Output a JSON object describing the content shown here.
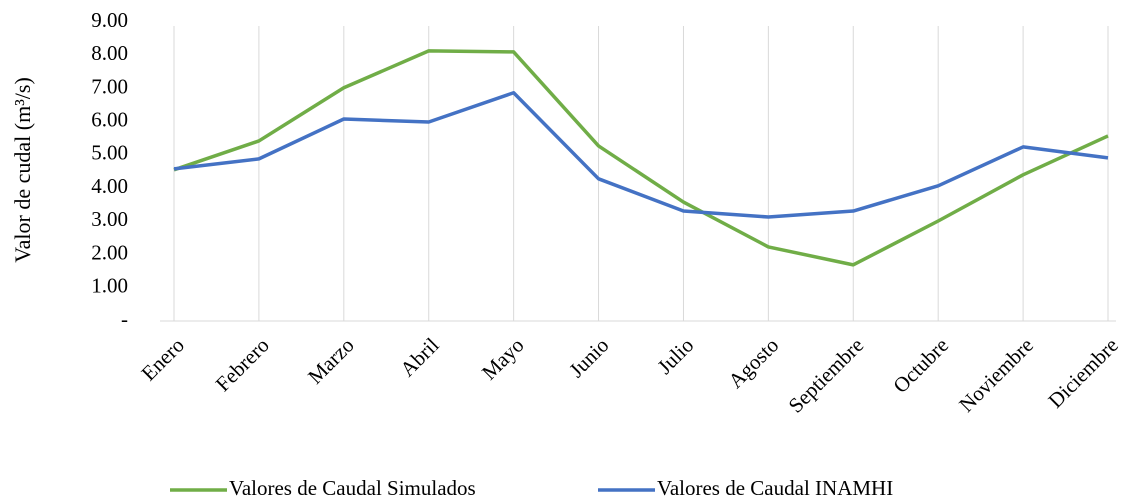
{
  "chart_data": {
    "type": "line",
    "y_label": "Valor de cudal (m³/s)",
    "categories": [
      "Enero",
      "Febrero",
      "Marzo",
      "Abril",
      "Mayo",
      "Junio",
      "Julio",
      "Agosto",
      "Septiembre",
      "Octubre",
      "Noviembre",
      "Diciembre"
    ],
    "series": [
      {
        "name": "Valores de Caudal Simulados",
        "color": "#70ad47",
        "values": [
          4.55,
          5.42,
          7.02,
          8.13,
          8.1,
          5.27,
          3.58,
          2.23,
          1.69,
          3.01,
          4.4,
          5.57
        ]
      },
      {
        "name": "Valores de Caudal INAMHI",
        "color": "#4472c4",
        "values": [
          4.58,
          4.88,
          6.08,
          5.99,
          6.87,
          4.28,
          3.31,
          3.13,
          3.31,
          4.07,
          5.24,
          4.91
        ]
      }
    ],
    "ylim": [
      0,
      9
    ],
    "yticks": [
      {
        "value": 0,
        "label": "-"
      },
      {
        "value": 1,
        "label": "1.00"
      },
      {
        "value": 2,
        "label": "2.00"
      },
      {
        "value": 3,
        "label": "3.00"
      },
      {
        "value": 4,
        "label": "4.00"
      },
      {
        "value": 5,
        "label": "5.00"
      },
      {
        "value": 6,
        "label": "6.00"
      },
      {
        "value": 7,
        "label": "7.00"
      },
      {
        "value": 8,
        "label": "8.00"
      },
      {
        "value": 9,
        "label": "9.00"
      }
    ],
    "grid": true,
    "legend": "bottom"
  }
}
